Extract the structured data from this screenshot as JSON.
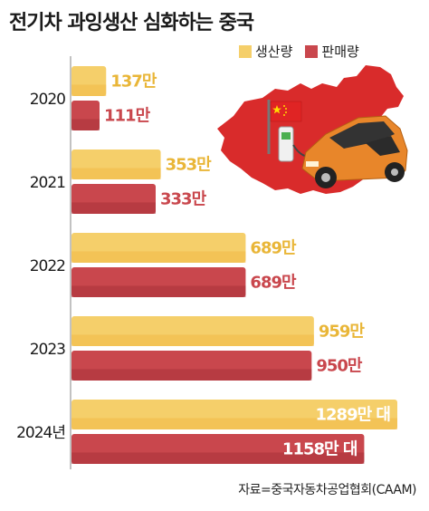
{
  "title": "전기차 과잉생산 심화하는 중국",
  "source": "자료=중국자동차공업협회(CAAM)",
  "colors": {
    "production": "#f5cf6a",
    "sales": "#c9474d",
    "map": "#d92b2b",
    "car": "#e8862a"
  },
  "chart_data": {
    "type": "bar",
    "orientation": "horizontal",
    "categories": [
      "2020",
      "2021",
      "2022",
      "2023",
      "2024년"
    ],
    "series": [
      {
        "name": "생산량",
        "values": [
          137,
          353,
          689,
          959,
          1289
        ],
        "labels": [
          "137만",
          "353만",
          "689만",
          "959만",
          "1289만 대"
        ]
      },
      {
        "name": "판매량",
        "values": [
          111,
          333,
          689,
          950,
          1158
        ],
        "labels": [
          "111만",
          "333만",
          "689만",
          "950만",
          "1158만 대"
        ]
      }
    ],
    "xlim": [
      0,
      1400
    ],
    "grid": false,
    "legend_position": "top-right"
  },
  "illustration": {
    "icons": [
      "china-map-icon",
      "china-flag-icon",
      "charging-station-icon",
      "electric-car-icon"
    ]
  }
}
